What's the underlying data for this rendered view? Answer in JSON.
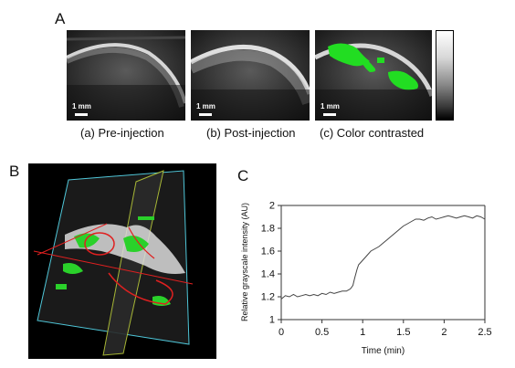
{
  "panels": {
    "a_label": "A",
    "b_label": "B",
    "c_label": "C"
  },
  "panel_a": {
    "captions": [
      "(a) Pre-injection",
      "(b) Post-injection",
      "(c) Color contrasted"
    ],
    "scalebar_label": "1 mm"
  },
  "chart_data": {
    "type": "line",
    "title": "",
    "xlabel": "Time (min)",
    "ylabel": "Relative grayscale intensity (AU)",
    "xlim": [
      0,
      2.5
    ],
    "ylim": [
      1,
      2
    ],
    "xticks": [
      "0",
      "0.5",
      "1",
      "1.5",
      "2",
      "2.5"
    ],
    "yticks": [
      "1",
      "1.2",
      "1.4",
      "1.6",
      "1.8",
      "2"
    ],
    "grid": false,
    "series": [
      {
        "x": [
          0.0,
          0.05,
          0.1,
          0.15,
          0.2,
          0.25,
          0.3,
          0.35,
          0.4,
          0.45,
          0.5,
          0.55,
          0.6,
          0.65,
          0.7,
          0.75,
          0.8,
          0.85,
          0.88,
          0.9,
          0.93,
          0.95,
          1.0,
          1.05,
          1.1,
          1.15,
          1.2,
          1.25,
          1.3,
          1.35,
          1.4,
          1.45,
          1.5,
          1.55,
          1.6,
          1.65,
          1.7,
          1.75,
          1.8,
          1.85,
          1.9,
          1.95,
          2.0,
          2.05,
          2.1,
          2.15,
          2.2,
          2.25,
          2.3,
          2.35,
          2.4,
          2.45,
          2.5
        ],
        "values": [
          1.18,
          1.21,
          1.2,
          1.22,
          1.2,
          1.21,
          1.22,
          1.21,
          1.22,
          1.21,
          1.23,
          1.22,
          1.24,
          1.23,
          1.24,
          1.25,
          1.25,
          1.27,
          1.3,
          1.36,
          1.44,
          1.48,
          1.52,
          1.56,
          1.6,
          1.62,
          1.64,
          1.67,
          1.7,
          1.73,
          1.76,
          1.79,
          1.82,
          1.84,
          1.86,
          1.88,
          1.88,
          1.87,
          1.89,
          1.9,
          1.88,
          1.89,
          1.9,
          1.91,
          1.9,
          1.89,
          1.9,
          1.91,
          1.9,
          1.89,
          1.91,
          1.9,
          1.88
        ]
      }
    ]
  }
}
